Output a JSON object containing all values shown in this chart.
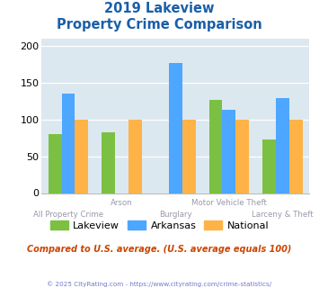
{
  "title_line1": "2019 Lakeview",
  "title_line2": "Property Crime Comparison",
  "categories": [
    "All Property Crime",
    "Arson",
    "Burglary",
    "Motor Vehicle Theft",
    "Larceny & Theft"
  ],
  "lakeview": [
    80,
    83,
    0,
    127,
    73
  ],
  "arkansas": [
    135,
    0,
    177,
    113,
    129
  ],
  "national": [
    100,
    100,
    100,
    100,
    100
  ],
  "color_lakeview": "#7bc043",
  "color_arkansas": "#4da6ff",
  "color_national": "#ffb347",
  "ylim": [
    0,
    210
  ],
  "yticks": [
    0,
    50,
    100,
    150,
    200
  ],
  "bg_color": "#dce8ef",
  "subtitle_note": "Compared to U.S. average. (U.S. average equals 100)",
  "copyright": "© 2025 CityRating.com - https://www.cityrating.com/crime-statistics/",
  "title_color": "#1a5fa8",
  "xlabel_color": "#9999aa",
  "legend_labels": [
    "Lakeview",
    "Arkansas",
    "National"
  ],
  "bar_width": 0.25,
  "subtitle_color": "#cc4400",
  "copyright_color": "#7777cc"
}
